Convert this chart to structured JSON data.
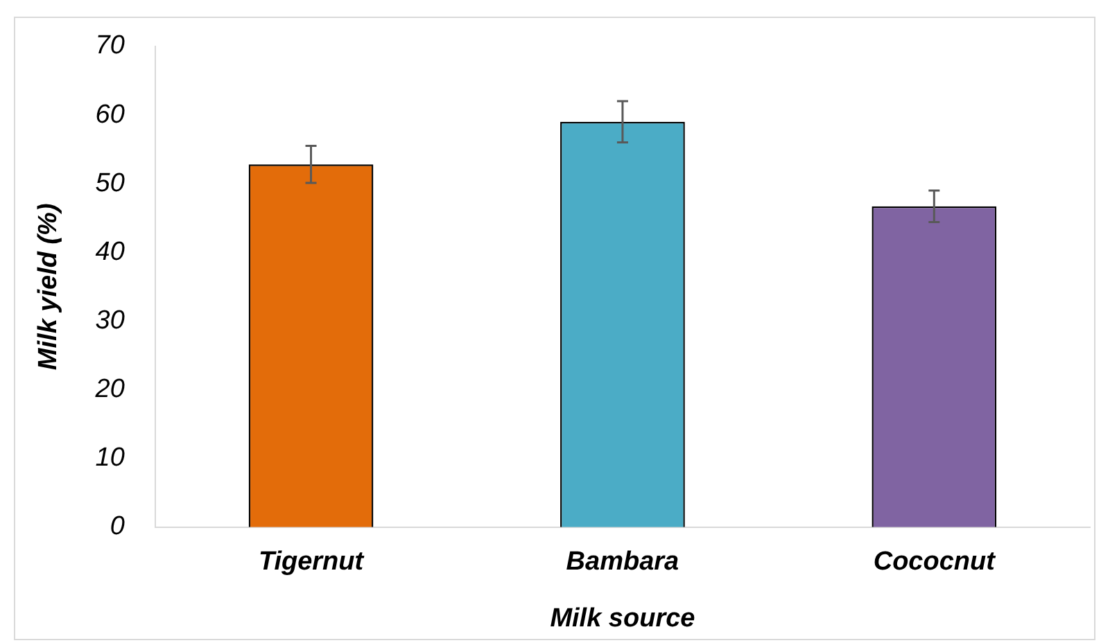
{
  "chart_data": {
    "type": "bar",
    "xlabel": "Milk source",
    "ylabel": "Milk yield (%)",
    "categories": [
      "Tigernut",
      "Bambara",
      "Cococnut"
    ],
    "values": [
      52.8,
      59.0,
      46.7
    ],
    "colors": [
      "#e36c0a",
      "#4bacc6",
      "#8064a2"
    ],
    "errors": [
      2.7,
      3.0,
      2.3
    ],
    "ylim": [
      0,
      70
    ],
    "yticks": [
      0,
      10,
      20,
      30,
      40,
      50,
      60,
      70
    ],
    "grid": false,
    "legend": false
  }
}
